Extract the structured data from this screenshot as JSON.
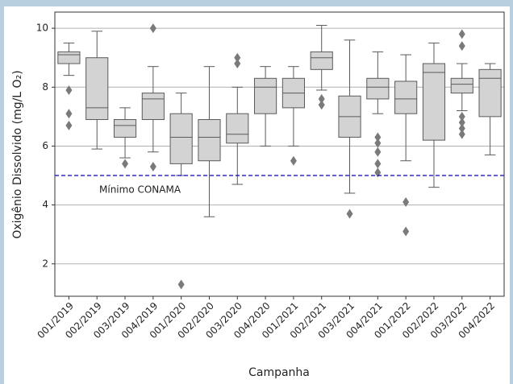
{
  "chart_data": {
    "type": "box",
    "xlabel": "Campanha",
    "ylabel": "Oxigênio Dissolvido (mg/L O₂)",
    "categories": [
      "001/2019",
      "002/2019",
      "003/2019",
      "004/2019",
      "001/2020",
      "002/2020",
      "003/2020",
      "004/2020",
      "001/2021",
      "002/2021",
      "003/2021",
      "004/2021",
      "001/2022",
      "002/2022",
      "003/2022",
      "004/2022"
    ],
    "boxes": [
      {
        "whisker_low": 8.4,
        "q1": 8.8,
        "median": 9.1,
        "q3": 9.2,
        "whisker_high": 9.5,
        "outliers": [
          7.9,
          7.1,
          6.7
        ]
      },
      {
        "whisker_low": 5.9,
        "q1": 6.9,
        "median": 7.3,
        "q3": 9.0,
        "whisker_high": 9.9,
        "outliers": []
      },
      {
        "whisker_low": 5.6,
        "q1": 6.3,
        "median": 6.7,
        "q3": 6.9,
        "whisker_high": 7.3,
        "outliers": [
          5.4
        ]
      },
      {
        "whisker_low": 5.8,
        "q1": 6.9,
        "median": 7.6,
        "q3": 7.8,
        "whisker_high": 8.7,
        "outliers": [
          10.0,
          5.3
        ]
      },
      {
        "whisker_low": 5.0,
        "q1": 5.4,
        "median": 6.3,
        "q3": 7.1,
        "whisker_high": 7.8,
        "outliers": [
          1.3
        ]
      },
      {
        "whisker_low": 3.6,
        "q1": 5.5,
        "median": 6.3,
        "q3": 6.9,
        "whisker_high": 8.7,
        "outliers": []
      },
      {
        "whisker_low": 4.7,
        "q1": 6.1,
        "median": 6.4,
        "q3": 7.1,
        "whisker_high": 8.0,
        "outliers": [
          9.0,
          8.8
        ]
      },
      {
        "whisker_low": 6.0,
        "q1": 7.1,
        "median": 8.0,
        "q3": 8.3,
        "whisker_high": 8.7,
        "outliers": []
      },
      {
        "whisker_low": 6.0,
        "q1": 7.3,
        "median": 7.8,
        "q3": 8.3,
        "whisker_high": 8.7,
        "outliers": [
          5.5
        ]
      },
      {
        "whisker_low": 7.9,
        "q1": 8.6,
        "median": 9.0,
        "q3": 9.2,
        "whisker_high": 10.1,
        "outliers": [
          7.6,
          7.4
        ]
      },
      {
        "whisker_low": 4.4,
        "q1": 6.3,
        "median": 7.0,
        "q3": 7.7,
        "whisker_high": 9.6,
        "outliers": [
          3.7
        ]
      },
      {
        "whisker_low": 7.1,
        "q1": 7.6,
        "median": 8.0,
        "q3": 8.3,
        "whisker_high": 9.2,
        "outliers": [
          6.3,
          6.1,
          5.8,
          5.4,
          5.1
        ]
      },
      {
        "whisker_low": 5.5,
        "q1": 7.1,
        "median": 7.6,
        "q3": 8.2,
        "whisker_high": 9.1,
        "outliers": [
          4.1,
          3.1
        ]
      },
      {
        "whisker_low": 4.6,
        "q1": 6.2,
        "median": 8.5,
        "q3": 8.8,
        "whisker_high": 9.5,
        "outliers": []
      },
      {
        "whisker_low": 7.2,
        "q1": 7.8,
        "median": 8.1,
        "q3": 8.3,
        "whisker_high": 8.8,
        "outliers": [
          9.8,
          9.4,
          7.0,
          6.8,
          6.6,
          6.4
        ]
      },
      {
        "whisker_low": 5.7,
        "q1": 7.0,
        "median": 8.3,
        "q3": 8.6,
        "whisker_high": 8.8,
        "outliers": []
      }
    ],
    "color": "#d3d3d3",
    "reference_line": {
      "value": 5,
      "label": "Mínimo CONAMA",
      "color": "#0000cc"
    },
    "ylim": [
      0.9,
      10.55
    ],
    "yticks": [
      2,
      4,
      6,
      8,
      10
    ],
    "grid": true
  }
}
